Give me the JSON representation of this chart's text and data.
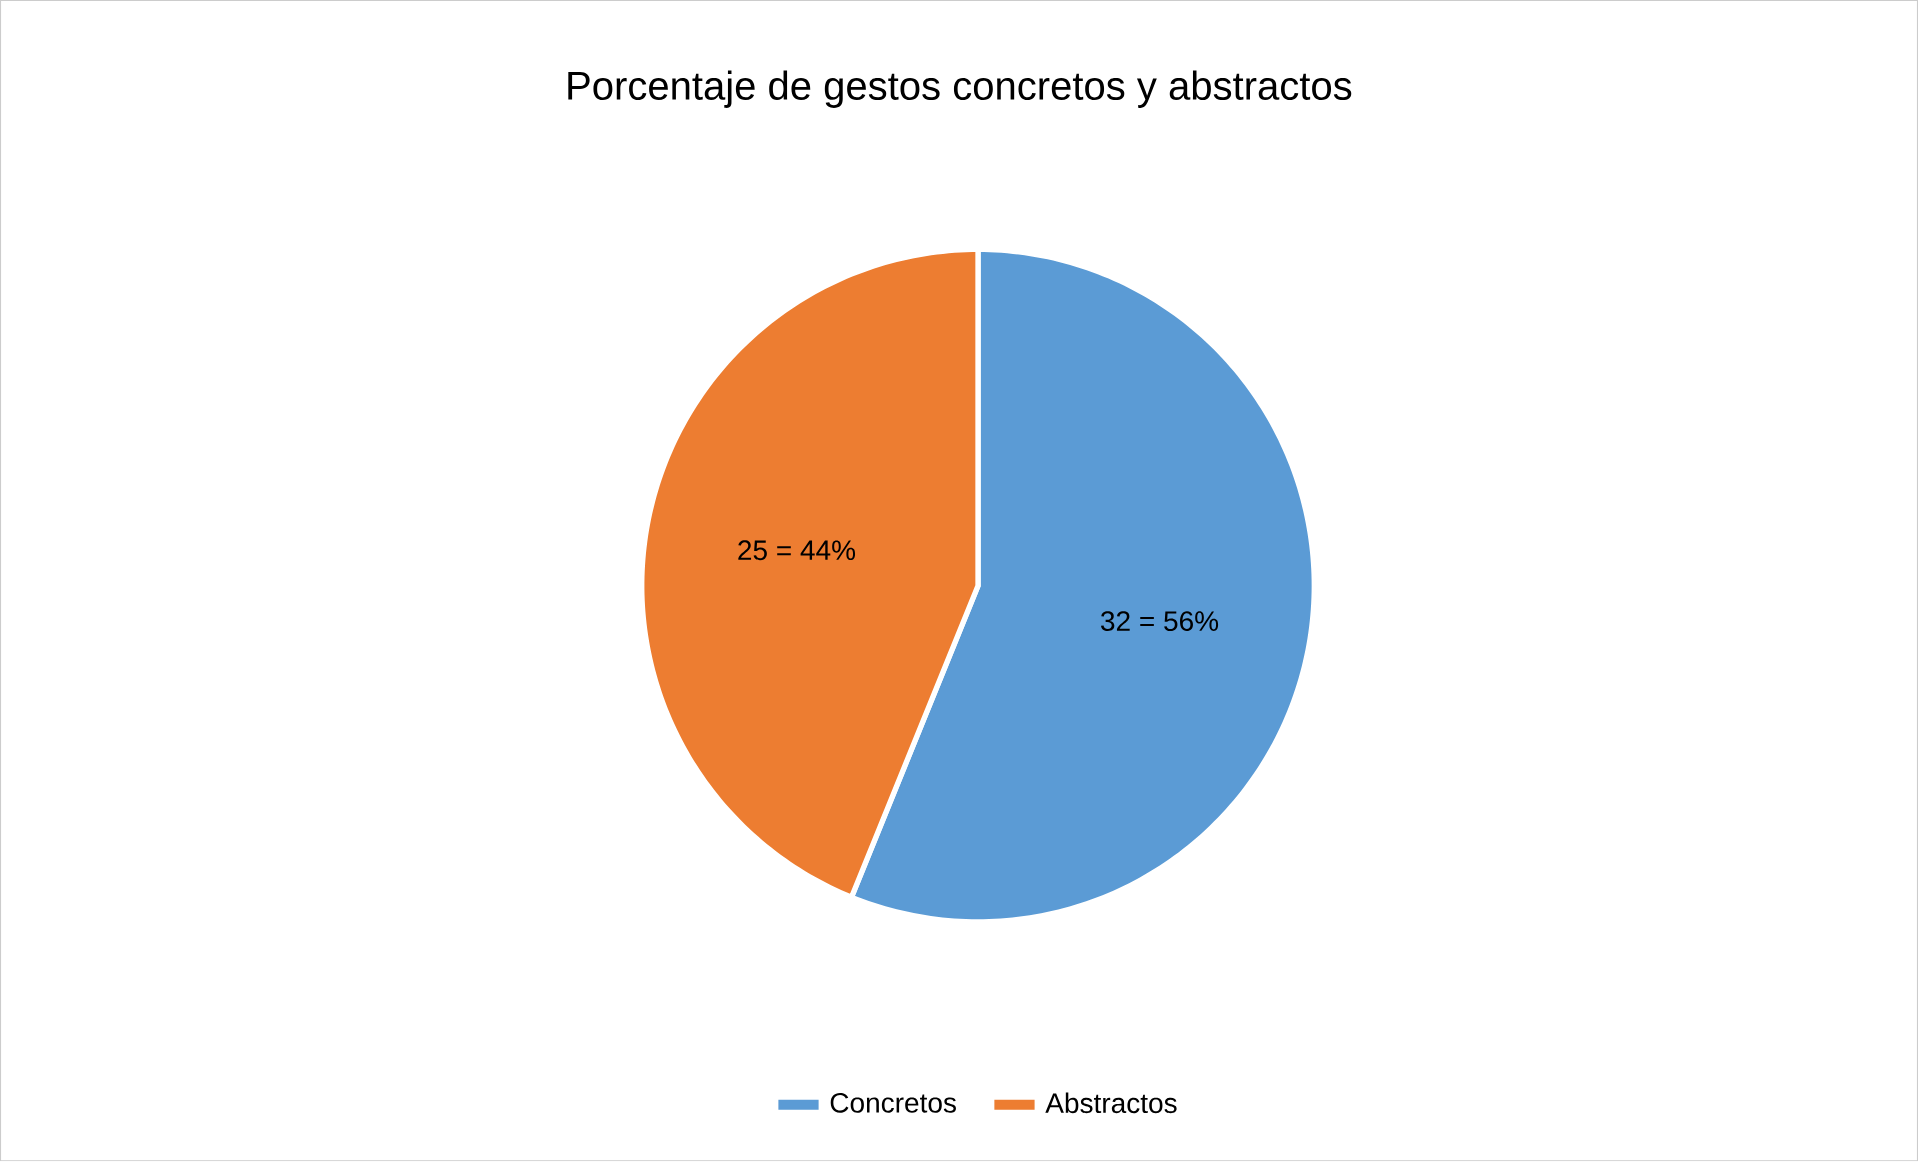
{
  "chart_data": {
    "type": "pie",
    "title": "Porcentaje de gestos concretos y abstractos",
    "categories": [
      "Concretos",
      "Abstractos"
    ],
    "values": [
      32,
      25
    ],
    "colors": [
      "#5b9bd5",
      "#ed7d31"
    ],
    "value_labels": [
      "32 = 56%",
      "25 = 44%"
    ],
    "legend": "bottom"
  }
}
